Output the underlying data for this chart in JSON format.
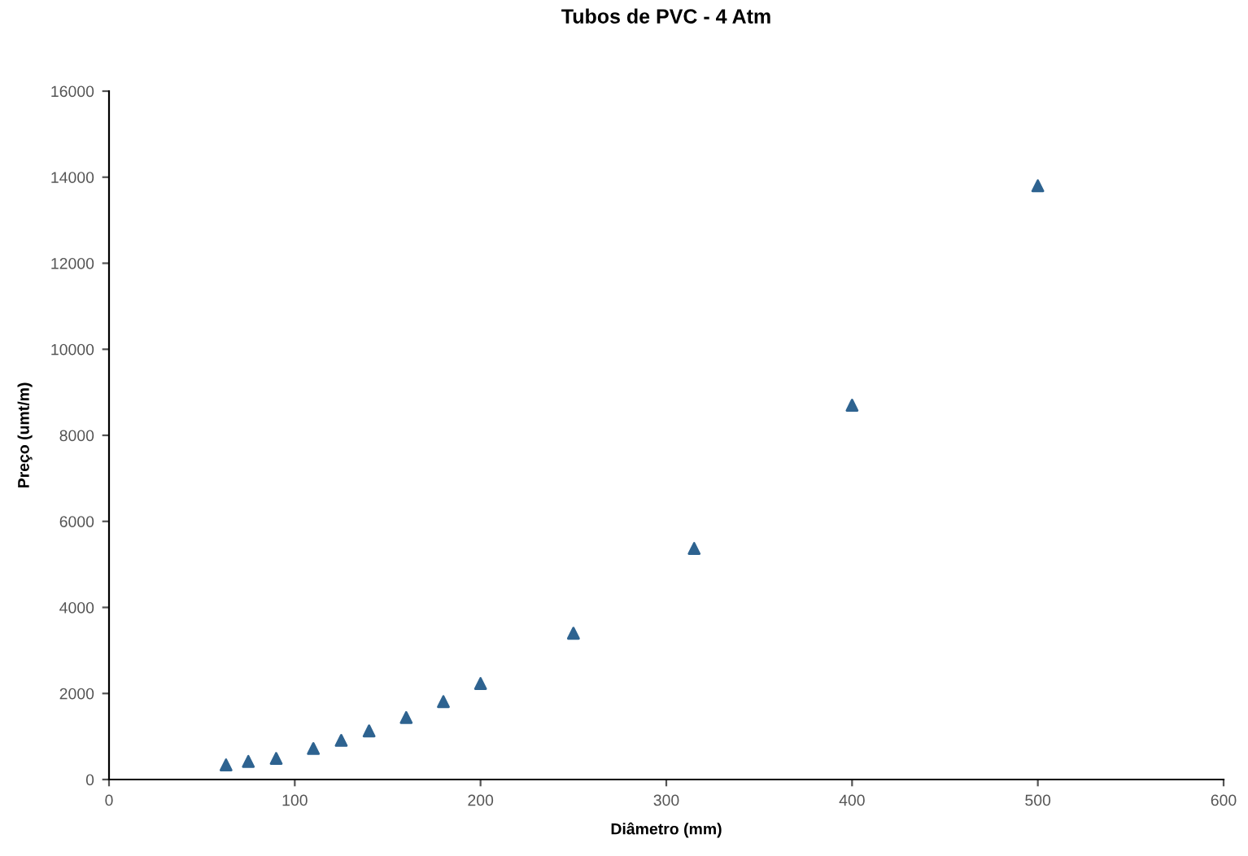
{
  "chart_data": {
    "type": "scatter",
    "title": "Tubos de PVC - 4 Atm",
    "xlabel": "Diâmetro (mm)",
    "ylabel": "Preço (umt/m)",
    "x": [
      63,
      75,
      90,
      110,
      125,
      140,
      160,
      180,
      200,
      250,
      315,
      400,
      500
    ],
    "series": [
      {
        "color": "#2e6390",
        "values": [
          340,
          420,
          490,
          720,
          910,
          1130,
          1440,
          1810,
          2230,
          3400,
          5370,
          8700,
          13800
        ]
      }
    ],
    "marker": "triangle",
    "grid": false,
    "legend": false,
    "xlim": [
      0,
      600
    ],
    "xticks": [
      0,
      100,
      200,
      300,
      400,
      500,
      600
    ],
    "ylim": [
      0,
      16000
    ],
    "yticks": [
      0,
      2000,
      4000,
      6000,
      8000,
      10000,
      12000,
      14000,
      16000
    ]
  }
}
